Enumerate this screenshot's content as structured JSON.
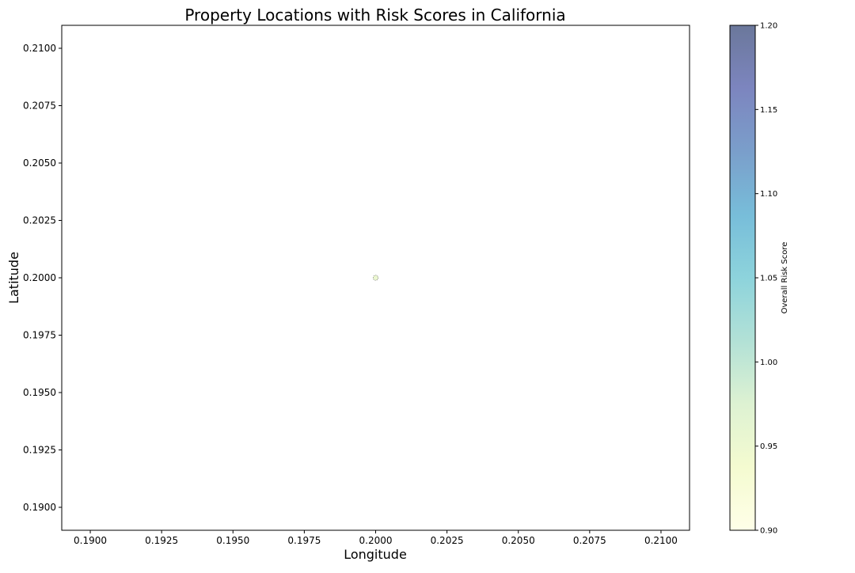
{
  "chart_data": {
    "type": "scatter",
    "title": "Property Locations with Risk Scores in California",
    "xlabel": "Longitude",
    "ylabel": "Latitude",
    "xlim": [
      0.189,
      0.211
    ],
    "ylim": [
      0.189,
      0.211
    ],
    "xticks": [
      "0.1900",
      "0.1925",
      "0.1950",
      "0.1975",
      "0.2000",
      "0.2025",
      "0.2050",
      "0.2075",
      "0.2100"
    ],
    "yticks": [
      "0.2100",
      "0.2075",
      "0.2050",
      "0.2025",
      "0.2000",
      "0.1975",
      "0.1950",
      "0.1925",
      "0.1900"
    ],
    "grid": false,
    "points": [
      {
        "x": 0.2,
        "y": 0.2,
        "risk_score": 0.95
      }
    ],
    "colorbar": {
      "label": "Overall Risk Score",
      "range": [
        0.9,
        1.2
      ],
      "ticks": [
        "1.20",
        "1.15",
        "1.10",
        "1.05",
        "1.00",
        "0.95",
        "0.90"
      ],
      "colormap": "YlGnBu",
      "colors": [
        "#ffffd9",
        "#edf8b1",
        "#c7e9b4",
        "#7fcdbb",
        "#41b6c4",
        "#1d91c0",
        "#225ea8",
        "#253494",
        "#081d58"
      ],
      "alpha": 0.6
    }
  }
}
